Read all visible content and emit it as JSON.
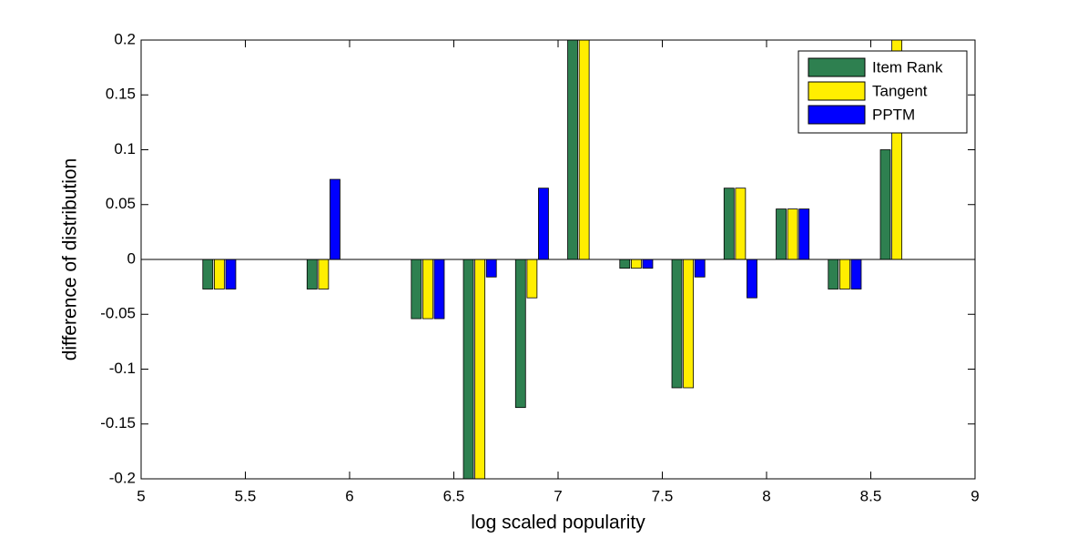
{
  "chart_data": {
    "type": "bar",
    "xlabel": "log scaled popularity",
    "ylabel": "difference of distribution",
    "x": [
      5.375,
      5.875,
      6.375,
      6.625,
      6.875,
      7.125,
      7.375,
      7.625,
      7.875,
      8.125,
      8.375,
      8.625
    ],
    "series": [
      {
        "name": "Item Rank",
        "color": "#2e8050",
        "values": [
          -0.027,
          -0.027,
          -0.054,
          -0.22,
          -0.135,
          0.22,
          -0.008,
          -0.117,
          0.065,
          0.046,
          -0.027,
          0.1
        ]
      },
      {
        "name": "Tangent",
        "color": "#ffee00",
        "values": [
          -0.027,
          -0.027,
          -0.054,
          -0.22,
          -0.035,
          0.22,
          -0.008,
          -0.117,
          0.065,
          0.046,
          -0.027,
          0.22
        ]
      },
      {
        "name": "PPTM",
        "color": "#0000ff",
        "values": [
          -0.027,
          0.073,
          -0.054,
          -0.016,
          0.065,
          0,
          -0.008,
          -0.016,
          -0.035,
          0.046,
          -0.027,
          0
        ]
      }
    ],
    "xlim": [
      5,
      9
    ],
    "xticks": [
      5,
      5.5,
      6,
      6.5,
      7,
      7.5,
      8,
      8.5,
      9
    ],
    "ylim": [
      -0.2,
      0.2
    ],
    "yticks": [
      -0.2,
      -0.15,
      -0.1,
      -0.05,
      0,
      0.05,
      0.1,
      0.15,
      0.2
    ],
    "legend": "upper right",
    "grid": false
  }
}
